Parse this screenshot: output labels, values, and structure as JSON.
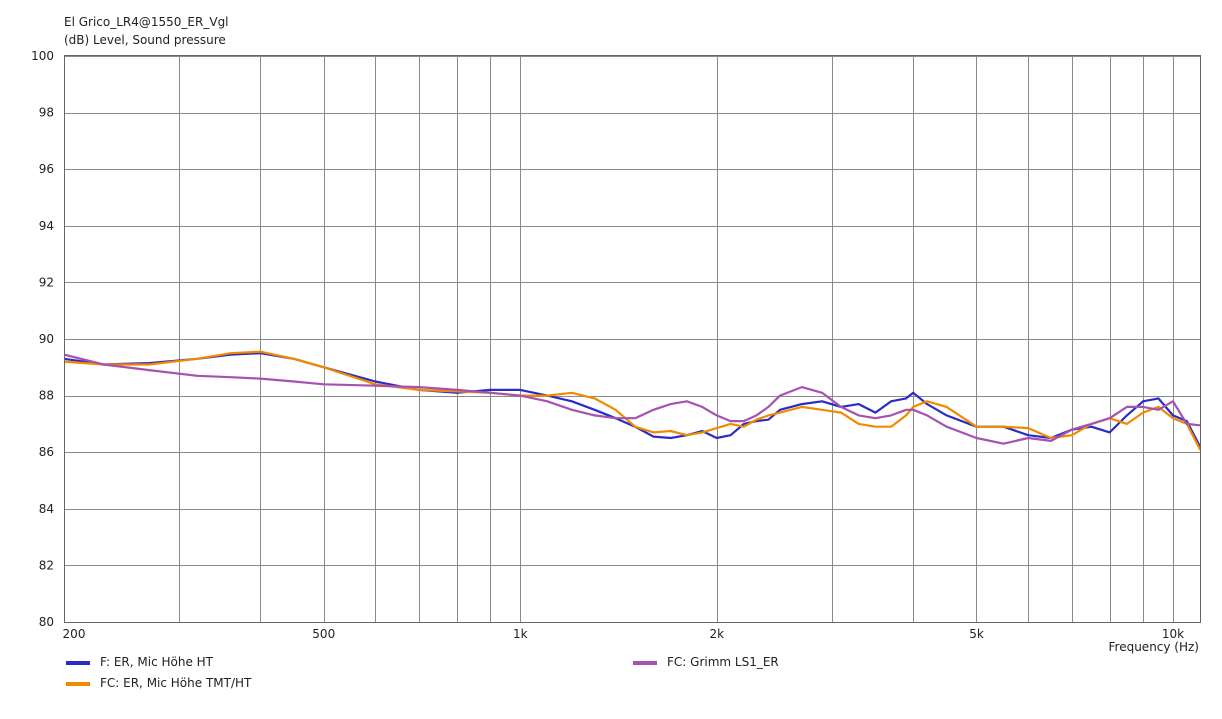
{
  "chart_data": {
    "type": "line",
    "title": "El Grico_LR4@1550_ER_Vgl",
    "ylabel": "(dB)  Level, Sound pressure",
    "xlabel": "Frequency  (Hz)",
    "x_scale": "log",
    "xlim": [
      200,
      11000
    ],
    "ylim": [
      80,
      100
    ],
    "y_ticks": [
      80,
      82,
      84,
      86,
      88,
      90,
      92,
      94,
      96,
      98,
      100
    ],
    "x_tick_labels": [
      {
        "value": 200,
        "label": "200"
      },
      {
        "value": 500,
        "label": "500"
      },
      {
        "value": 1000,
        "label": "1k"
      },
      {
        "value": 2000,
        "label": "2k"
      },
      {
        "value": 5000,
        "label": "5k"
      },
      {
        "value": 10000,
        "label": "10k"
      }
    ],
    "x_gridlines": [
      300,
      400,
      500,
      600,
      700,
      800,
      900,
      1000,
      2000,
      3000,
      4000,
      5000,
      6000,
      7000,
      8000,
      9000,
      10000
    ],
    "grid": true,
    "legend_position": "bottom",
    "series": [
      {
        "name": "F: ER, Mic Höhe HT",
        "color": "#2b2bc8",
        "x": [
          200,
          230,
          270,
          320,
          360,
          400,
          450,
          500,
          600,
          700,
          800,
          900,
          1000,
          1100,
          1200,
          1300,
          1400,
          1500,
          1600,
          1700,
          1800,
          1900,
          2000,
          2100,
          2200,
          2300,
          2400,
          2500,
          2700,
          2900,
          3100,
          3300,
          3500,
          3700,
          3900,
          4000,
          4200,
          4500,
          5000,
          5500,
          6000,
          6500,
          7000,
          7500,
          8000,
          8500,
          9000,
          9500,
          10000,
          10500,
          11000
        ],
        "values": [
          89.3,
          89.1,
          89.15,
          89.3,
          89.45,
          89.5,
          89.3,
          89.0,
          88.5,
          88.2,
          88.1,
          88.2,
          88.2,
          88.0,
          87.8,
          87.5,
          87.2,
          86.9,
          86.55,
          86.5,
          86.6,
          86.75,
          86.5,
          86.6,
          87.0,
          87.1,
          87.15,
          87.5,
          87.7,
          87.8,
          87.6,
          87.7,
          87.4,
          87.8,
          87.9,
          88.1,
          87.7,
          87.3,
          86.9,
          86.9,
          86.6,
          86.5,
          86.8,
          86.9,
          86.7,
          87.3,
          87.8,
          87.9,
          87.3,
          87.1,
          86.2
        ]
      },
      {
        "name": "FC: ER, Mic Höhe TMT/HT",
        "color": "#f28a00",
        "x": [
          200,
          230,
          270,
          320,
          360,
          400,
          450,
          500,
          600,
          700,
          800,
          900,
          1000,
          1100,
          1200,
          1300,
          1400,
          1500,
          1600,
          1700,
          1800,
          1900,
          2000,
          2100,
          2200,
          2300,
          2400,
          2500,
          2700,
          2900,
          3100,
          3300,
          3500,
          3700,
          3900,
          4000,
          4200,
          4500,
          5000,
          5500,
          6000,
          6500,
          7000,
          7500,
          8000,
          8500,
          9000,
          9500,
          10000,
          10500,
          11000
        ],
        "values": [
          89.2,
          89.1,
          89.1,
          89.3,
          89.5,
          89.55,
          89.3,
          89.0,
          88.4,
          88.2,
          88.15,
          88.1,
          88.0,
          88.0,
          88.1,
          87.9,
          87.5,
          86.9,
          86.7,
          86.75,
          86.6,
          86.7,
          86.85,
          87.0,
          86.9,
          87.15,
          87.3,
          87.4,
          87.6,
          87.5,
          87.4,
          87.0,
          86.9,
          86.9,
          87.3,
          87.6,
          87.8,
          87.6,
          86.9,
          86.9,
          86.85,
          86.5,
          86.6,
          87.0,
          87.2,
          87.0,
          87.4,
          87.6,
          87.2,
          87.0,
          86.1
        ]
      },
      {
        "name": "FC: Grimm LS1_ER",
        "color": "#a552b0",
        "x": [
          200,
          230,
          270,
          320,
          360,
          400,
          450,
          500,
          600,
          700,
          800,
          900,
          1000,
          1100,
          1200,
          1300,
          1400,
          1500,
          1600,
          1700,
          1800,
          1900,
          2000,
          2100,
          2200,
          2300,
          2400,
          2500,
          2700,
          2900,
          3100,
          3300,
          3500,
          3700,
          3900,
          4000,
          4200,
          4500,
          5000,
          5500,
          6000,
          6500,
          7000,
          7500,
          8000,
          8500,
          9000,
          9500,
          10000,
          10500,
          11000
        ],
        "values": [
          89.45,
          89.1,
          88.9,
          88.7,
          88.65,
          88.6,
          88.5,
          88.4,
          88.35,
          88.3,
          88.2,
          88.1,
          88.0,
          87.8,
          87.5,
          87.3,
          87.2,
          87.2,
          87.5,
          87.7,
          87.8,
          87.6,
          87.3,
          87.1,
          87.1,
          87.3,
          87.6,
          88.0,
          88.3,
          88.1,
          87.6,
          87.3,
          87.2,
          87.3,
          87.5,
          87.5,
          87.3,
          86.9,
          86.5,
          86.3,
          86.5,
          86.4,
          86.8,
          87.0,
          87.2,
          87.6,
          87.6,
          87.5,
          87.8,
          87.0,
          86.95
        ]
      }
    ]
  }
}
